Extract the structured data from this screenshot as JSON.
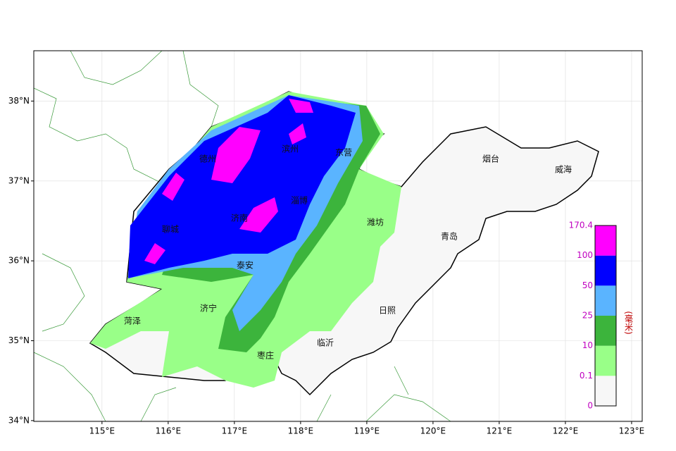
{
  "map": {
    "xlim": [
      113.97,
      123.16
    ],
    "ylim": [
      33.99,
      38.63
    ],
    "xticks": [
      {
        "value": 115,
        "label": "115°E"
      },
      {
        "value": 116,
        "label": "116°E"
      },
      {
        "value": 117,
        "label": "117°E"
      },
      {
        "value": 118,
        "label": "118°E"
      },
      {
        "value": 119,
        "label": "119°E"
      },
      {
        "value": 120,
        "label": "120°E"
      },
      {
        "value": 121,
        "label": "121°E"
      },
      {
        "value": 122,
        "label": "122°E"
      },
      {
        "value": 123,
        "label": "123°E"
      }
    ],
    "yticks": [
      {
        "value": 34,
        "label": "34°N"
      },
      {
        "value": 35,
        "label": "35°N"
      },
      {
        "value": 36,
        "label": "36°N"
      },
      {
        "value": 37,
        "label": "37°N"
      },
      {
        "value": 38,
        "label": "38°N"
      }
    ],
    "cities": [
      "德州",
      "滨州",
      "东营",
      "烟台",
      "威海",
      "聊城",
      "济南",
      "淄博",
      "潍坊",
      "青岛",
      "泰安",
      "济宁",
      "菏泽",
      "日照",
      "临沂",
      "枣庄"
    ],
    "legend": {
      "unit": "(毫米)",
      "levels": [
        0,
        0.1,
        10,
        25,
        50,
        100,
        170.4
      ],
      "colors": [
        "#f7f7f7",
        "#99ff88",
        "#3cb43c",
        "#5ab4ff",
        "#0000ff",
        "#ff00ff"
      ]
    }
  }
}
